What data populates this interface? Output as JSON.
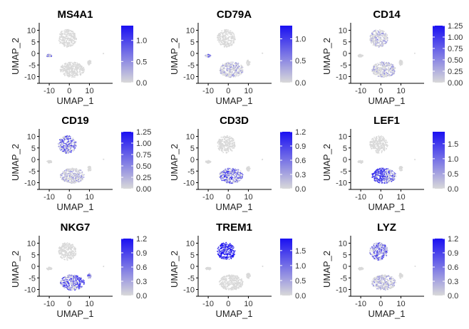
{
  "chart_data": [
    {
      "type": "scatter",
      "title": "MS4A1",
      "xlabel": "UMAP_1",
      "ylabel": "UMAP_2",
      "xticks": [
        "-10",
        "0",
        "10"
      ],
      "yticks": [
        "10",
        "5",
        "0",
        "-5",
        "-10"
      ],
      "colorbar_ticks": [
        "0.0",
        "0.5",
        "1.0"
      ],
      "colorbar_range": [
        0,
        1.35
      ],
      "color_low": "#d9d9d9",
      "color_high": "#1a10f2",
      "highlight": [
        "left"
      ]
    },
    {
      "type": "scatter",
      "title": "CD79A",
      "xlabel": "UMAP_1",
      "ylabel": "UMAP_2",
      "xticks": [
        "-10",
        "0",
        "10"
      ],
      "yticks": [
        "10",
        "5",
        "0",
        "-5",
        "-10"
      ],
      "colorbar_ticks": [
        "0.0",
        "0.5",
        "1.0"
      ],
      "colorbar_range": [
        0,
        1.3
      ],
      "color_low": "#d9d9d9",
      "color_high": "#1a10f2",
      "highlight": [
        "left",
        "bottom_light"
      ]
    },
    {
      "type": "scatter",
      "title": "CD14",
      "xlabel": "UMAP_1",
      "ylabel": "UMAP_2",
      "xticks": [
        "-10",
        "0",
        "10"
      ],
      "yticks": [
        "10",
        "5",
        "0",
        "-5",
        "-10"
      ],
      "colorbar_ticks": [
        "0.00",
        "0.25",
        "0.50",
        "0.75",
        "1.00",
        "1.25"
      ],
      "colorbar_range": [
        0,
        1.25
      ],
      "color_low": "#d9d9d9",
      "color_high": "#1a10f2",
      "highlight": [
        "top_light",
        "bottom_light"
      ]
    },
    {
      "type": "scatter",
      "title": "CD19",
      "xlabel": "UMAP_1",
      "ylabel": "UMAP_2",
      "xticks": [
        "-10",
        "0",
        "10"
      ],
      "yticks": [
        "10",
        "5",
        "0",
        "-5",
        "-10"
      ],
      "colorbar_ticks": [
        "0.00",
        "0.25",
        "0.50",
        "0.75",
        "1.00",
        "1.25"
      ],
      "colorbar_range": [
        0,
        1.25
      ],
      "color_low": "#d9d9d9",
      "color_high": "#1a10f2",
      "highlight": [
        "top",
        "bottom_light"
      ]
    },
    {
      "type": "scatter",
      "title": "CD3D",
      "xlabel": "UMAP_1",
      "ylabel": "UMAP_2",
      "xticks": [
        "-10",
        "0",
        "10"
      ],
      "yticks": [
        "10",
        "5",
        "0",
        "-5",
        "-10"
      ],
      "colorbar_ticks": [
        "0.0",
        "0.3",
        "0.6",
        "0.9",
        "1.2"
      ],
      "colorbar_range": [
        0,
        1.2
      ],
      "color_low": "#d9d9d9",
      "color_high": "#1a10f2",
      "highlight": [
        "bottom"
      ]
    },
    {
      "type": "scatter",
      "title": "LEF1",
      "xlabel": "UMAP_1",
      "ylabel": "UMAP_2",
      "xticks": [
        "-10",
        "0",
        "10"
      ],
      "yticks": [
        "10",
        "5",
        "0",
        "-5",
        "-10"
      ],
      "colorbar_ticks": [
        "0.0",
        "0.5",
        "1.0",
        "1.5"
      ],
      "colorbar_range": [
        0,
        1.9
      ],
      "color_low": "#d9d9d9",
      "color_high": "#1a10f2",
      "highlight": [
        "bottom_left_strong",
        "bottom"
      ]
    },
    {
      "type": "scatter",
      "title": "NKG7",
      "xlabel": "UMAP_1",
      "ylabel": "UMAP_2",
      "xticks": [
        "-10",
        "0",
        "10"
      ],
      "yticks": [
        "10",
        "5",
        "0",
        "-5",
        "-10"
      ],
      "colorbar_ticks": [
        "0.0",
        "0.3",
        "0.6",
        "0.9",
        "1.2"
      ],
      "colorbar_range": [
        0,
        1.2
      ],
      "color_low": "#d9d9d9",
      "color_high": "#1a10f2",
      "highlight": [
        "bottom_right_strong",
        "bottom",
        "island_b"
      ]
    },
    {
      "type": "scatter",
      "title": "TREM1",
      "xlabel": "UMAP_1",
      "ylabel": "UMAP_2",
      "xticks": [
        "-10",
        "0",
        "10"
      ],
      "yticks": [
        "10",
        "5",
        "0",
        "-5",
        "-10"
      ],
      "colorbar_ticks": [
        "0.0",
        "0.5",
        "1.0",
        "1.5"
      ],
      "colorbar_range": [
        0,
        1.9
      ],
      "color_low": "#d9d9d9",
      "color_high": "#1a10f2",
      "highlight": [
        "top_strong"
      ]
    },
    {
      "type": "scatter",
      "title": "LYZ",
      "xlabel": "UMAP_1",
      "ylabel": "UMAP_2",
      "xticks": [
        "-10",
        "0",
        "10"
      ],
      "yticks": [
        "10",
        "5",
        "0",
        "-5",
        "-10"
      ],
      "colorbar_ticks": [
        "0.0",
        "0.3",
        "0.6",
        "0.9",
        "1.2"
      ],
      "colorbar_range": [
        0,
        1.2
      ],
      "color_low": "#d9d9d9",
      "color_high": "#1a10f2",
      "highlight": [
        "top",
        "bottom_light"
      ]
    }
  ]
}
